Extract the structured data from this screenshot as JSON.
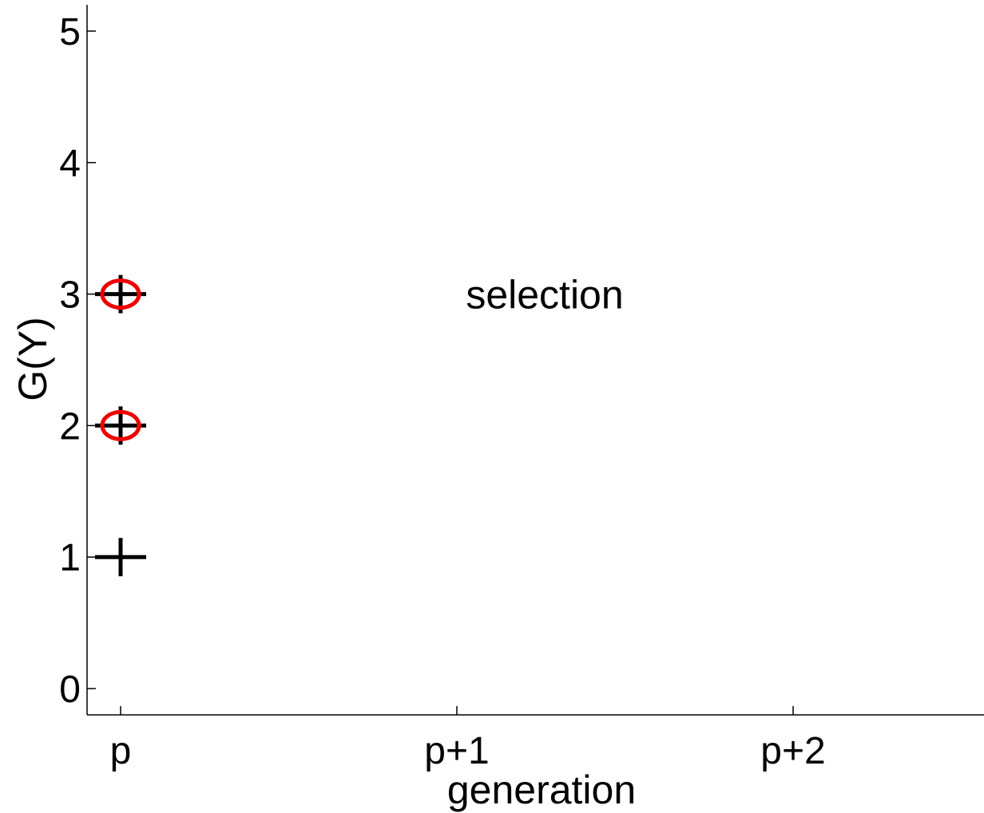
{
  "chart_data": {
    "type": "scatter",
    "xlabel": "generation",
    "ylabel": "G(Y)",
    "x_categories": [
      "p",
      "p+1",
      "p+2"
    ],
    "ylim": [
      -0.2,
      5.2
    ],
    "y_ticks": [
      0,
      1,
      2,
      3,
      4,
      5
    ],
    "grid": false,
    "series": [
      {
        "marker": "plus",
        "color": "#000000",
        "points": [
          {
            "x": "p",
            "y": 1
          },
          {
            "x": "p",
            "y": 2
          },
          {
            "x": "p",
            "y": 3
          }
        ]
      },
      {
        "marker": "circle",
        "color": "#ee0000",
        "points": [
          {
            "x": "p",
            "y": 2
          },
          {
            "x": "p",
            "y": 3
          }
        ]
      }
    ],
    "annotations": [
      {
        "text": "selection",
        "x": "p+1",
        "y": 3
      }
    ]
  }
}
